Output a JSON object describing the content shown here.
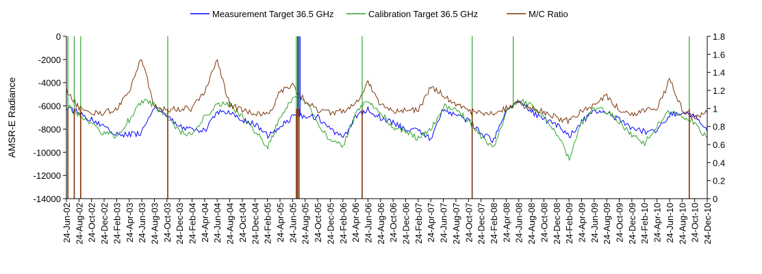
{
  "chart_data": {
    "type": "line",
    "title": "",
    "xlabel": "",
    "ylabel": "AMSR-E Radiance",
    "y2label": "",
    "ylim": [
      -14000,
      0
    ],
    "y2lim": [
      0,
      1.8
    ],
    "yticks": [
      0,
      -2000,
      -4000,
      -6000,
      -8000,
      -10000,
      -12000,
      -14000
    ],
    "y2ticks": [
      "1.8",
      "1.6",
      "1.4",
      "1.2",
      "1",
      "0.8",
      "0.6",
      "0.4",
      "0.2",
      "0"
    ],
    "grid": false,
    "legend_position": "top",
    "x_range": [
      "2002-06-24",
      "2010-12-24"
    ],
    "x_tick_labels": [
      "24-Jun-02",
      "24-Aug-02",
      "24-Oct-02",
      "24-Dec-02",
      "24-Feb-03",
      "24-Apr-03",
      "24-Jun-03",
      "24-Aug-03",
      "24-Oct-03",
      "24-Dec-03",
      "24-Feb-04",
      "24-Apr-04",
      "24-Jun-04",
      "24-Aug-04",
      "24-Oct-04",
      "24-Dec-04",
      "24-Feb-05",
      "24-Apr-05",
      "24-Jun-05",
      "24-Aug-05",
      "24-Oct-05",
      "24-Dec-05",
      "24-Feb-06",
      "24-Apr-06",
      "24-Jun-06",
      "24-Aug-06",
      "24-Oct-06",
      "24-Dec-06",
      "24-Feb-07",
      "24-Apr-07",
      "24-Jun-07",
      "24-Aug-07",
      "24-Oct-07",
      "24-Dec-07",
      "24-Feb-08",
      "24-Apr-08",
      "24-Jun-08",
      "24-Aug-08",
      "24-Oct-08",
      "24-Dec-08",
      "24-Feb-09",
      "24-Apr-09",
      "24-Jun-09",
      "24-Aug-09",
      "24-Oct-09",
      "24-Dec-09",
      "24-Feb-10",
      "24-Apr-10",
      "24-Jun-10",
      "24-Aug-10",
      "24-Oct-10",
      "24-Dec-10"
    ],
    "series": [
      {
        "name": "Measurement Target 36.5 GHz",
        "axis": "left",
        "color": "#0000ff",
        "x": [
          "2002-06-24",
          "2002-08-24",
          "2002-10-24",
          "2002-12-24",
          "2003-02-24",
          "2003-04-24",
          "2003-06-24",
          "2003-08-24",
          "2003-10-24",
          "2003-12-24",
          "2004-02-24",
          "2004-04-24",
          "2004-06-24",
          "2004-08-24",
          "2004-10-24",
          "2004-12-24",
          "2005-02-24",
          "2005-04-24",
          "2005-06-24",
          "2005-08-24",
          "2005-10-24",
          "2005-12-24",
          "2006-02-24",
          "2006-04-24",
          "2006-06-24",
          "2006-08-24",
          "2006-10-24",
          "2006-12-24",
          "2007-02-24",
          "2007-04-24",
          "2007-06-24",
          "2007-08-24",
          "2007-10-24",
          "2007-12-24",
          "2008-02-24",
          "2008-04-24",
          "2008-06-24",
          "2008-08-24",
          "2008-10-24",
          "2008-12-24",
          "2009-02-24",
          "2009-04-24",
          "2009-06-24",
          "2009-08-24",
          "2009-10-24",
          "2009-12-24",
          "2010-02-24",
          "2010-04-24",
          "2010-06-24",
          "2010-08-24",
          "2010-10-24",
          "2010-12-24"
        ],
        "values": [
          -6200,
          -6600,
          -7200,
          -7800,
          -8400,
          -8500,
          -8300,
          -6200,
          -6800,
          -7800,
          -8000,
          -8200,
          -6500,
          -6600,
          -7200,
          -7600,
          -8600,
          -7800,
          -7000,
          -6800,
          -7000,
          -8000,
          -8800,
          -7000,
          -6300,
          -7000,
          -7400,
          -8000,
          -8200,
          -8800,
          -6200,
          -6900,
          -7200,
          -8400,
          -9000,
          -6400,
          -5700,
          -6500,
          -7200,
          -7600,
          -8600,
          -7400,
          -6400,
          -6600,
          -7200,
          -8000,
          -8200,
          -8200,
          -6800,
          -6600,
          -6800,
          -8200
        ]
      },
      {
        "name": "Calibration Target 36.5 GHz",
        "axis": "left",
        "color": "#2ca02c",
        "x": [
          "2002-06-24",
          "2002-08-24",
          "2002-10-24",
          "2002-12-24",
          "2003-02-24",
          "2003-04-24",
          "2003-06-24",
          "2003-08-24",
          "2003-10-24",
          "2003-12-24",
          "2004-02-24",
          "2004-04-24",
          "2004-06-24",
          "2004-08-24",
          "2004-10-24",
          "2004-12-24",
          "2005-02-24",
          "2005-04-24",
          "2005-06-24",
          "2005-08-24",
          "2005-10-24",
          "2005-12-24",
          "2006-02-24",
          "2006-04-24",
          "2006-06-24",
          "2006-08-24",
          "2006-10-24",
          "2006-12-24",
          "2007-02-24",
          "2007-04-24",
          "2007-06-24",
          "2007-08-24",
          "2007-10-24",
          "2007-12-24",
          "2008-02-24",
          "2008-04-24",
          "2008-06-24",
          "2008-08-24",
          "2008-10-24",
          "2008-12-24",
          "2009-02-24",
          "2009-04-24",
          "2009-06-24",
          "2009-08-24",
          "2009-10-24",
          "2009-12-24",
          "2010-02-24",
          "2010-04-24",
          "2010-06-24",
          "2010-08-24",
          "2010-10-24",
          "2010-12-24"
        ],
        "values": [
          -6000,
          -6800,
          -7600,
          -8400,
          -8600,
          -7200,
          -5600,
          -5900,
          -7000,
          -8200,
          -8600,
          -7000,
          -5800,
          -5900,
          -7000,
          -8200,
          -9600,
          -7000,
          -5400,
          -5600,
          -7400,
          -9000,
          -9400,
          -6800,
          -5500,
          -6600,
          -7800,
          -8200,
          -8800,
          -8000,
          -6000,
          -6300,
          -7200,
          -8600,
          -9600,
          -6500,
          -5500,
          -6000,
          -7000,
          -8500,
          -10500,
          -7500,
          -6200,
          -6500,
          -7400,
          -8600,
          -9200,
          -7800,
          -6500,
          -6800,
          -7400,
          -8800
        ]
      },
      {
        "name": "M/C Ratio",
        "axis": "right",
        "color": "#7b3306",
        "x": [
          "2002-06-24",
          "2002-08-24",
          "2002-10-24",
          "2002-12-24",
          "2003-02-24",
          "2003-04-24",
          "2003-06-24",
          "2003-08-24",
          "2003-10-24",
          "2003-12-24",
          "2004-02-24",
          "2004-04-24",
          "2004-06-24",
          "2004-08-24",
          "2004-10-24",
          "2004-12-24",
          "2005-02-24",
          "2005-04-24",
          "2005-06-24",
          "2005-08-24",
          "2005-10-24",
          "2005-12-24",
          "2006-02-24",
          "2006-04-24",
          "2006-06-24",
          "2006-08-24",
          "2006-10-24",
          "2006-12-24",
          "2007-02-24",
          "2007-04-24",
          "2007-06-24",
          "2007-08-24",
          "2007-10-24",
          "2007-12-24",
          "2008-02-24",
          "2008-04-24",
          "2008-06-24",
          "2008-08-24",
          "2008-10-24",
          "2008-12-24",
          "2009-02-24",
          "2009-04-24",
          "2009-06-24",
          "2009-08-24",
          "2009-10-24",
          "2009-12-24",
          "2010-02-24",
          "2010-04-24",
          "2010-06-24",
          "2010-08-24",
          "2010-10-24",
          "2010-12-24"
        ],
        "values": [
          1.2,
          1.0,
          0.96,
          0.95,
          1.0,
          1.2,
          1.55,
          1.02,
          0.98,
          1.0,
          1.0,
          1.2,
          1.52,
          1.04,
          0.98,
          0.95,
          0.92,
          1.18,
          1.25,
          1.08,
          0.98,
          0.95,
          0.98,
          1.05,
          1.3,
          1.04,
          0.98,
          0.98,
          0.98,
          1.25,
          1.15,
          1.05,
          0.97,
          0.95,
          0.96,
          1.0,
          1.06,
          1.0,
          0.96,
          0.9,
          0.86,
          0.97,
          1.02,
          1.14,
          0.98,
          0.94,
          0.98,
          0.98,
          1.32,
          1.0,
          0.9,
          0.95
        ]
      }
    ],
    "spikes": {
      "calibration_up": [
        "2002-07-01",
        "2002-08-01",
        "2002-09-01",
        "2003-10-28",
        "2005-07-12",
        "2005-07-18",
        "2005-07-25",
        "2006-05-27",
        "2007-11-11",
        "2008-05-28",
        "2010-09-28"
      ],
      "measurement_up": [
        "2005-07-20",
        "2005-07-30"
      ],
      "ratio_down": [
        "2002-07-01",
        "2002-08-01",
        "2002-09-01",
        "2003-10-28",
        "2005-07-12",
        "2005-07-18",
        "2005-07-25",
        "2006-05-27",
        "2007-11-11",
        "2010-09-28"
      ]
    }
  }
}
